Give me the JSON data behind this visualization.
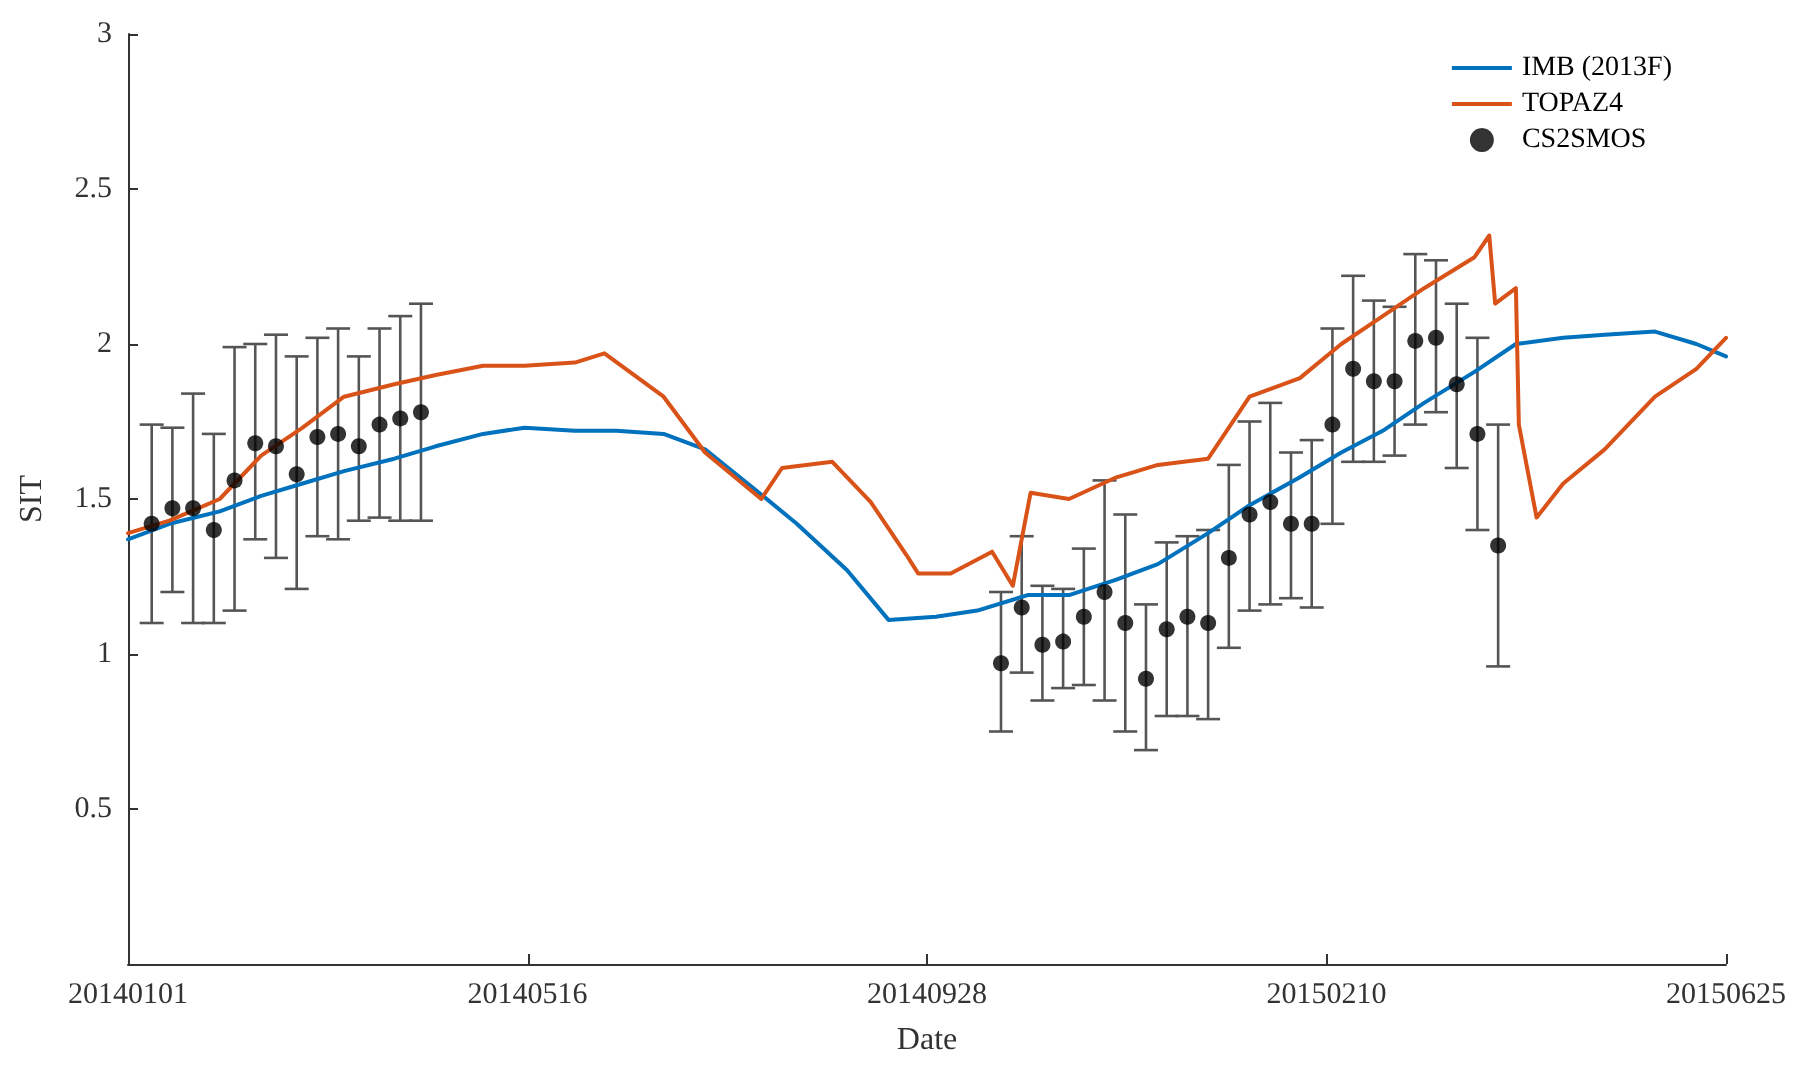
{
  "chart_data": {
    "type": "line",
    "xlabel": "Date",
    "ylabel": "SIT",
    "xlim": [
      "2014-01-01",
      "2015-06-25"
    ],
    "xticks": [
      {
        "value": "2014-01-01",
        "label": "20140101"
      },
      {
        "value": "2014-05-16",
        "label": "20140516"
      },
      {
        "value": "2014-09-28",
        "label": "20140928"
      },
      {
        "value": "2015-02-10",
        "label": "20150210"
      },
      {
        "value": "2015-06-25",
        "label": "20150625"
      }
    ],
    "ylim": [
      0,
      3
    ],
    "yticks": [
      0.5,
      1,
      1.5,
      2,
      2.5,
      3
    ],
    "grid": false,
    "legend": "top right",
    "series": [
      {
        "name": "IMB (2013F)",
        "color": "#0072bd",
        "marker": "none",
        "line_style": "solid",
        "x": [
          "2014-01-01",
          "2014-01-15",
          "2014-02-01",
          "2014-02-15",
          "2014-03-01",
          "2014-03-15",
          "2014-04-01",
          "2014-04-15",
          "2014-05-01",
          "2014-05-15",
          "2014-06-01",
          "2014-06-15",
          "2014-07-01",
          "2014-07-15",
          "2014-08-01",
          "2014-08-15",
          "2014-09-01",
          "2014-09-15",
          "2014-10-01",
          "2014-10-15",
          "2014-11-01",
          "2014-11-15",
          "2014-12-01",
          "2014-12-15",
          "2015-01-01",
          "2015-01-15",
          "2015-02-01",
          "2015-02-15",
          "2015-03-01",
          "2015-03-15",
          "2015-04-01",
          "2015-04-15",
          "2015-05-01",
          "2015-05-15",
          "2015-06-01",
          "2015-06-15",
          "2015-06-25"
        ],
        "values": [
          1.37,
          1.42,
          1.46,
          1.51,
          1.55,
          1.59,
          1.63,
          1.67,
          1.71,
          1.73,
          1.72,
          1.72,
          1.71,
          1.66,
          1.53,
          1.42,
          1.27,
          1.11,
          1.12,
          1.14,
          1.19,
          1.19,
          1.24,
          1.29,
          1.39,
          1.48,
          1.57,
          1.65,
          1.72,
          1.81,
          1.91,
          2.0,
          2.02,
          2.03,
          2.04,
          2.0,
          1.96
        ]
      },
      {
        "name": "TOPAZ4",
        "color": "#d95319",
        "marker": "none",
        "line_style": "solid",
        "x": [
          "2014-01-01",
          "2014-01-15",
          "2014-02-01",
          "2014-02-15",
          "2014-03-01",
          "2014-03-15",
          "2014-04-01",
          "2014-04-15",
          "2014-05-01",
          "2014-05-15",
          "2014-06-01",
          "2014-06-11",
          "2014-07-01",
          "2014-07-15",
          "2014-08-03",
          "2014-08-10",
          "2014-08-27",
          "2014-09-09",
          "2014-09-21",
          "2014-09-25",
          "2014-10-06",
          "2014-10-20",
          "2014-10-27",
          "2014-11-02",
          "2014-11-15",
          "2014-12-01",
          "2014-12-15",
          "2015-01-01",
          "2015-01-15",
          "2015-02-01",
          "2015-02-15",
          "2015-03-01",
          "2015-03-15",
          "2015-04-01",
          "2015-04-06",
          "2015-04-08",
          "2015-04-15",
          "2015-04-16",
          "2015-04-22",
          "2015-05-01",
          "2015-05-15",
          "2015-06-01",
          "2015-06-15",
          "2015-06-25"
        ],
        "values": [
          1.39,
          1.43,
          1.5,
          1.64,
          1.73,
          1.83,
          1.87,
          1.9,
          1.93,
          1.93,
          1.94,
          1.97,
          1.83,
          1.65,
          1.5,
          1.6,
          1.62,
          1.49,
          1.32,
          1.26,
          1.26,
          1.33,
          1.22,
          1.52,
          1.5,
          1.57,
          1.61,
          1.63,
          1.83,
          1.89,
          2.0,
          2.09,
          2.18,
          2.28,
          2.35,
          2.13,
          2.18,
          1.74,
          1.44,
          1.55,
          1.66,
          1.83,
          1.92,
          2.02
        ]
      },
      {
        "name": "CS2SMOS",
        "type": "scatter",
        "color": "#000000",
        "marker": "circle",
        "x": [
          "2014-01-09",
          "2014-01-16",
          "2014-01-23",
          "2014-01-30",
          "2014-02-06",
          "2014-02-13",
          "2014-02-20",
          "2014-02-27",
          "2014-03-06",
          "2014-03-13",
          "2014-03-20",
          "2014-03-27",
          "2014-04-03",
          "2014-04-10",
          "2014-10-23",
          "2014-10-30",
          "2014-11-06",
          "2014-11-13",
          "2014-11-20",
          "2014-11-27",
          "2014-12-04",
          "2014-12-11",
          "2014-12-18",
          "2014-12-25",
          "2015-01-01",
          "2015-01-08",
          "2015-01-15",
          "2015-01-22",
          "2015-01-29",
          "2015-02-05",
          "2015-02-12",
          "2015-02-19",
          "2015-02-26",
          "2015-03-05",
          "2015-03-12",
          "2015-03-19",
          "2015-03-26",
          "2015-04-02",
          "2015-04-09"
        ],
        "values": [
          1.42,
          1.47,
          1.47,
          1.4,
          1.56,
          1.68,
          1.67,
          1.58,
          1.7,
          1.71,
          1.67,
          1.74,
          1.76,
          1.78,
          0.97,
          1.15,
          1.03,
          1.04,
          1.12,
          1.2,
          1.1,
          0.92,
          1.08,
          1.12,
          1.1,
          1.31,
          1.45,
          1.49,
          1.42,
          1.42,
          1.74,
          1.92,
          1.88,
          1.88,
          2.01,
          2.02,
          1.87,
          1.71,
          1.35
        ],
        "errors": [
          [
            1.1,
            1.74
          ],
          [
            1.2,
            1.73
          ],
          [
            1.1,
            1.84
          ],
          [
            1.1,
            1.71
          ],
          [
            1.14,
            1.99
          ],
          [
            1.37,
            2.0
          ],
          [
            1.31,
            2.03
          ],
          [
            1.21,
            1.96
          ],
          [
            1.38,
            2.02
          ],
          [
            1.37,
            2.05
          ],
          [
            1.43,
            1.96
          ],
          [
            1.44,
            2.05
          ],
          [
            1.43,
            2.09
          ],
          [
            1.43,
            2.13
          ],
          [
            0.75,
            1.2
          ],
          [
            0.94,
            1.38
          ],
          [
            0.85,
            1.22
          ],
          [
            0.89,
            1.21
          ],
          [
            0.9,
            1.34
          ],
          [
            0.85,
            1.56
          ],
          [
            0.75,
            1.45
          ],
          [
            0.69,
            1.16
          ],
          [
            0.8,
            1.36
          ],
          [
            0.8,
            1.38
          ],
          [
            0.79,
            1.4
          ],
          [
            1.02,
            1.61
          ],
          [
            1.14,
            1.75
          ],
          [
            1.16,
            1.81
          ],
          [
            1.18,
            1.65
          ],
          [
            1.15,
            1.69
          ],
          [
            1.42,
            2.05
          ],
          [
            1.62,
            2.22
          ],
          [
            1.62,
            2.14
          ],
          [
            1.64,
            2.12
          ],
          [
            1.74,
            2.29
          ],
          [
            1.78,
            2.27
          ],
          [
            1.6,
            2.13
          ],
          [
            1.4,
            2.02
          ],
          [
            0.96,
            1.74
          ]
        ]
      }
    ]
  }
}
